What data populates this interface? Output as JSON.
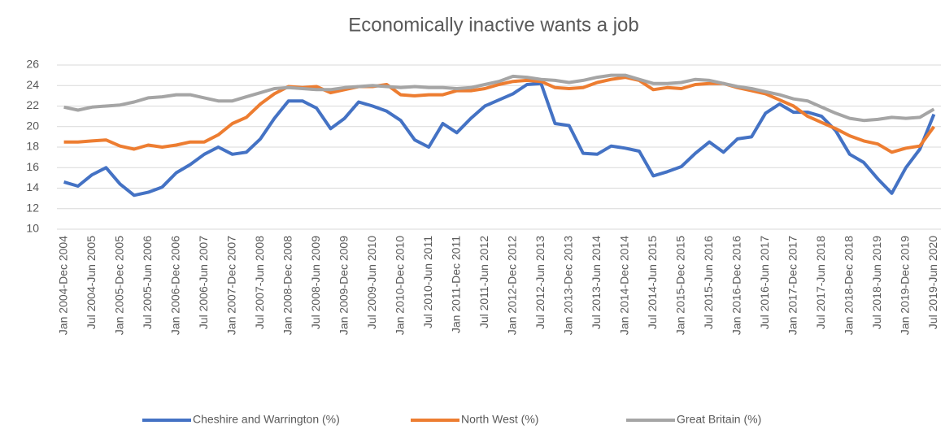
{
  "chart_data": {
    "type": "line",
    "title": "Economically inactive wants a job",
    "categories": [
      "Jan 2004-Dec 2004",
      null,
      "Jul 2004-Jun 2005",
      null,
      "Jan 2005-Dec 2005",
      null,
      "Jul 2005-Jun 2006",
      null,
      "Jan 2006-Dec 2006",
      null,
      "Jul 2006-Jun 2007",
      null,
      "Jan 2007-Dec 2007",
      null,
      "Jul 2007-Jun 2008",
      null,
      "Jan 2008-Dec 2008",
      null,
      "Jul 2008-Jun 2009",
      null,
      "Jan 2009-Dec 2009",
      null,
      "Jul 2009-Jun 2010",
      null,
      "Jan 2010-Dec 2010",
      null,
      "Jul 2010-Jun 2011",
      null,
      "Jan 2011-Dec 2011",
      null,
      "Jul 2011-Jun 2012",
      null,
      "Jan 2012-Dec 2012",
      null,
      "Jul 2012-Jun 2013",
      null,
      "Jan 2013-Dec 2013",
      null,
      "Jul 2013-Jun 2014",
      null,
      "Jan 2014-Dec 2014",
      null,
      "Jul 2014-Jun 2015",
      null,
      "Jan 2015-Dec 2015",
      null,
      "Jul 2015-Jun 2016",
      null,
      "Jan 2016-Dec 2016",
      null,
      "Jul 2016-Jun 2017",
      null,
      "Jan 2017-Dec 2017",
      null,
      "Jul 2017-Jun 2018",
      null,
      "Jan 2018-Dec 2018",
      null,
      "Jul 2018-Jun 2019",
      null,
      "Jan 2019-Dec 2019",
      null,
      "Jul 2019-Jun 2020"
    ],
    "series": [
      {
        "name": "Cheshire and Warrington (%)",
        "color": "#4472c4",
        "values": [
          14.6,
          14.2,
          15.3,
          16.0,
          14.4,
          13.3,
          13.6,
          14.1,
          15.5,
          16.3,
          17.3,
          18.0,
          17.3,
          17.5,
          18.8,
          20.8,
          22.5,
          22.5,
          21.8,
          19.8,
          20.8,
          22.4,
          22.0,
          21.5,
          20.6,
          18.7,
          18.0,
          20.3,
          19.4,
          20.8,
          22.0,
          22.6,
          23.2,
          24.1,
          24.2,
          20.3,
          20.1,
          17.4,
          17.3,
          18.1,
          17.9,
          17.6,
          15.2,
          15.6,
          16.1,
          17.4,
          18.5,
          17.5,
          18.8,
          19.0,
          21.3,
          22.2,
          21.4,
          21.4,
          21.0,
          19.6,
          17.3,
          16.5,
          14.9,
          13.5,
          16.0,
          17.8,
          21.2
        ]
      },
      {
        "name": "North West (%)",
        "color": "#ed7d31",
        "values": [
          18.5,
          18.5,
          18.6,
          18.7,
          18.1,
          17.8,
          18.2,
          18.0,
          18.2,
          18.5,
          18.5,
          19.2,
          20.3,
          20.9,
          22.2,
          23.2,
          23.9,
          23.8,
          23.9,
          23.3,
          23.6,
          23.9,
          23.9,
          24.1,
          23.1,
          23.0,
          23.1,
          23.1,
          23.5,
          23.5,
          23.7,
          24.1,
          24.4,
          24.5,
          24.4,
          23.8,
          23.7,
          23.8,
          24.3,
          24.6,
          24.8,
          24.5,
          23.6,
          23.8,
          23.7,
          24.1,
          24.2,
          24.2,
          23.8,
          23.5,
          23.2,
          22.6,
          22.0,
          21.0,
          20.4,
          19.8,
          19.1,
          18.6,
          18.3,
          17.5,
          17.9,
          18.1,
          20.0
        ]
      },
      {
        "name": "Great Britain (%)",
        "color": "#a5a5a5",
        "values": [
          21.9,
          21.6,
          21.9,
          22.0,
          22.1,
          22.4,
          22.8,
          22.9,
          23.1,
          23.1,
          22.8,
          22.5,
          22.5,
          22.9,
          23.3,
          23.7,
          23.8,
          23.7,
          23.6,
          23.6,
          23.8,
          23.9,
          24.0,
          23.9,
          23.8,
          23.9,
          23.8,
          23.8,
          23.7,
          23.8,
          24.1,
          24.4,
          24.9,
          24.8,
          24.6,
          24.5,
          24.3,
          24.5,
          24.8,
          25.0,
          25.0,
          24.6,
          24.2,
          24.2,
          24.3,
          24.6,
          24.5,
          24.2,
          23.9,
          23.7,
          23.4,
          23.1,
          22.7,
          22.5,
          21.9,
          21.3,
          20.8,
          20.6,
          20.7,
          20.9,
          20.8,
          20.9,
          21.7
        ]
      }
    ],
    "ylim": [
      10,
      26
    ],
    "yticks": [
      10,
      12,
      14,
      16,
      18,
      20,
      22,
      24,
      26
    ],
    "grid": true,
    "legend": "bottom"
  }
}
